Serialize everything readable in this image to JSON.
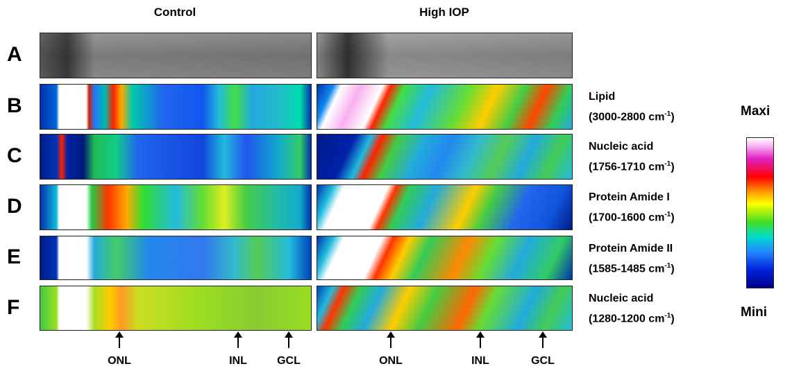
{
  "columns": [
    "Control",
    "High IOP"
  ],
  "rows": [
    {
      "letter": "A"
    },
    {
      "letter": "B",
      "label": "Lipid",
      "range": "(3000-2800 cm",
      "exponent": "-1",
      "close": ")"
    },
    {
      "letter": "C",
      "label": "Nucleic acid",
      "range": "(1756-1710 cm",
      "exponent": "-1",
      "close": ")"
    },
    {
      "letter": "D",
      "label": "Protein Amide I",
      "range": "(1700-1600 cm",
      "exponent": "-1",
      "close": ")"
    },
    {
      "letter": "E",
      "label": "Protein Amide II",
      "range": "(1585-1485 cm",
      "exponent": "-1",
      "close": ")"
    },
    {
      "letter": "F",
      "label": "Nucleic acid",
      "range": "(1280-1200 cm",
      "exponent": "-1",
      "close": ")"
    }
  ],
  "legend": {
    "max": "Maxi",
    "min": "Mini"
  },
  "markers": {
    "control": [
      "ONL",
      "INL",
      "GCL"
    ],
    "high_iop": [
      "ONL",
      "INL",
      "GCL"
    ]
  }
}
